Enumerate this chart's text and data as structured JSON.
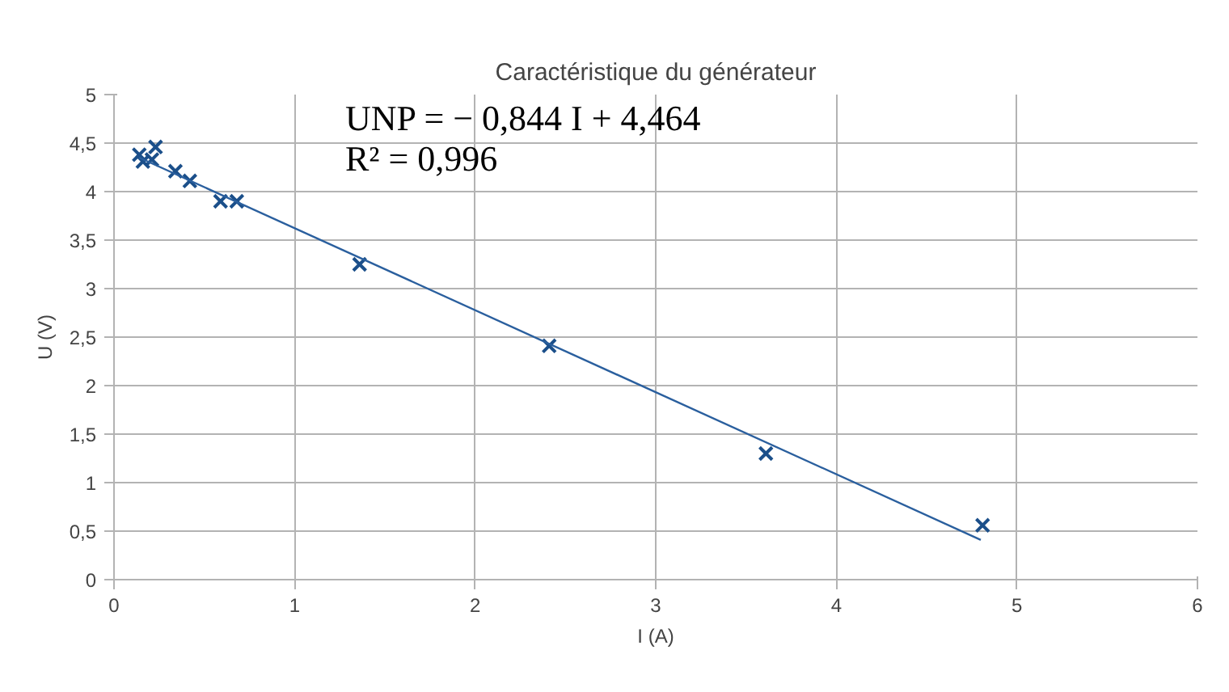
{
  "chart_data": {
    "type": "scatter",
    "title": "Caractéristique du générateur",
    "xlabel": "I (A)",
    "ylabel": "U (V)",
    "xlim": [
      0,
      6
    ],
    "xticks": [
      0,
      1,
      2,
      3,
      4,
      5,
      6
    ],
    "ylim": [
      0,
      5
    ],
    "yticks": [
      0,
      {
        "value": 0.5,
        "label": "0,5"
      },
      1,
      {
        "value": 1.5,
        "label": "1,5"
      },
      2,
      {
        "value": 2.5,
        "label": "2,5"
      },
      3,
      {
        "value": 3.5,
        "label": "3,5"
      },
      4,
      {
        "value": 4.5,
        "label": "4,5"
      },
      5
    ],
    "grid": true,
    "series": [
      {
        "marker": "cross",
        "color": "#1b4f8a",
        "x": [
          0.14,
          0.16,
          0.21,
          0.23,
          0.34,
          0.42,
          0.59,
          0.68,
          1.36,
          2.41,
          3.61,
          4.81
        ],
        "values": [
          4.38,
          4.31,
          4.33,
          4.46,
          4.21,
          4.11,
          3.9,
          3.9,
          3.25,
          2.41,
          1.3,
          0.56
        ]
      },
      {
        "type": "line",
        "marker": "none",
        "color": "#2a5f9e",
        "line_style": "solid",
        "x": [
          0.14,
          4.8
        ],
        "values": [
          4.35,
          0.41
        ]
      }
    ],
    "annotations": [
      "UNP = − 0,844 I + 4,464",
      "R² = 0,996"
    ]
  }
}
